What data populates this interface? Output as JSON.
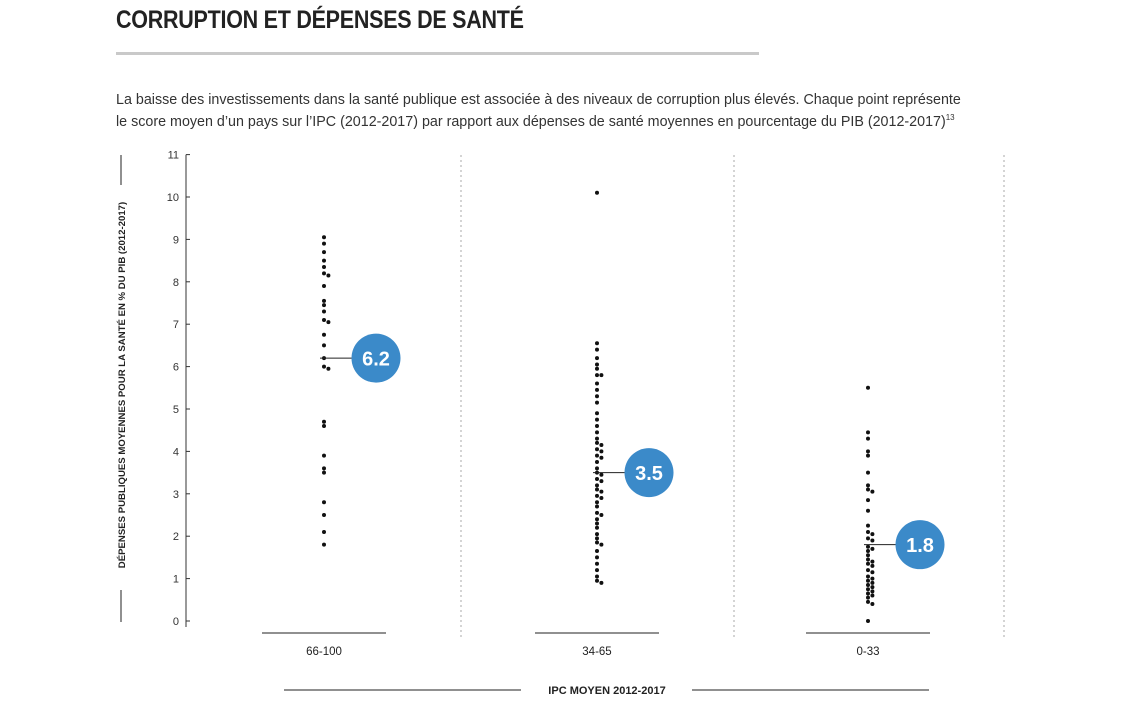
{
  "header": {
    "title": "CORRUPTION ET DÉPENSES DE SANTÉ"
  },
  "intro": {
    "line1": "La baisse des investissements dans la santé publique est associée à des niveaux de corruption plus élevés. Chaque point représente",
    "line2": "le score moyen d’un pays sur l’IPC (2012-2017) par rapport aux dépenses de santé moyennes en pourcentage du PIB (2012-2017)",
    "footnote": "13"
  },
  "colors": {
    "accent": "#3b8ac9",
    "dot": "#111111",
    "axis": "#333333",
    "separator": "#aaaaaa"
  },
  "chart_data": {
    "type": "scatter",
    "subtype": "beeswarm",
    "xlabel": "IPC MOYEN 2012-2017",
    "ylabel": "DÉPENSES PUBLIQUES MOYENNES POUR LA SANTÉ EN % DU PIB (2012-2017)",
    "ylim": [
      0,
      11
    ],
    "yticks": [
      0,
      1,
      2,
      3,
      4,
      5,
      6,
      7,
      8,
      9,
      10,
      11
    ],
    "grid": false,
    "categories": [
      "66-100",
      "34-65",
      "0-33"
    ],
    "groups": [
      {
        "category": "66-100",
        "mean": 6.2,
        "mean_label": "6.2",
        "values": [
          9.05,
          8.9,
          8.7,
          8.5,
          8.35,
          8.2,
          8.15,
          7.9,
          7.55,
          7.45,
          7.3,
          7.1,
          7.05,
          6.75,
          6.5,
          6.2,
          6.0,
          5.95,
          4.7,
          4.6,
          3.9,
          3.6,
          3.5,
          2.8,
          2.5,
          2.1,
          1.8
        ]
      },
      {
        "category": "34-65",
        "mean": 3.5,
        "mean_label": "3.5",
        "values": [
          10.1,
          6.55,
          6.4,
          6.2,
          6.05,
          5.95,
          5.8,
          5.8,
          5.6,
          5.45,
          5.3,
          5.15,
          4.9,
          4.75,
          4.6,
          4.45,
          4.3,
          4.2,
          4.15,
          4.05,
          4.0,
          3.9,
          3.85,
          3.75,
          3.6,
          3.5,
          3.45,
          3.35,
          3.3,
          3.2,
          3.1,
          3.05,
          2.95,
          2.9,
          2.8,
          2.7,
          2.55,
          2.5,
          2.4,
          2.3,
          2.2,
          2.05,
          1.95,
          1.85,
          1.8,
          1.65,
          1.5,
          1.35,
          1.2,
          1.05,
          0.95,
          0.9
        ]
      },
      {
        "category": "0-33",
        "mean": 1.8,
        "mean_label": "1.8",
        "values": [
          5.5,
          4.45,
          4.3,
          4.0,
          3.9,
          3.5,
          3.2,
          3.1,
          3.05,
          2.85,
          2.6,
          2.25,
          2.1,
          2.05,
          1.95,
          1.9,
          1.75,
          1.7,
          1.65,
          1.55,
          1.45,
          1.4,
          1.35,
          1.3,
          1.2,
          1.15,
          1.05,
          1.0,
          0.95,
          0.9,
          0.85,
          0.8,
          0.75,
          0.7,
          0.65,
          0.6,
          0.55,
          0.45,
          0.4,
          0.0
        ]
      }
    ]
  }
}
